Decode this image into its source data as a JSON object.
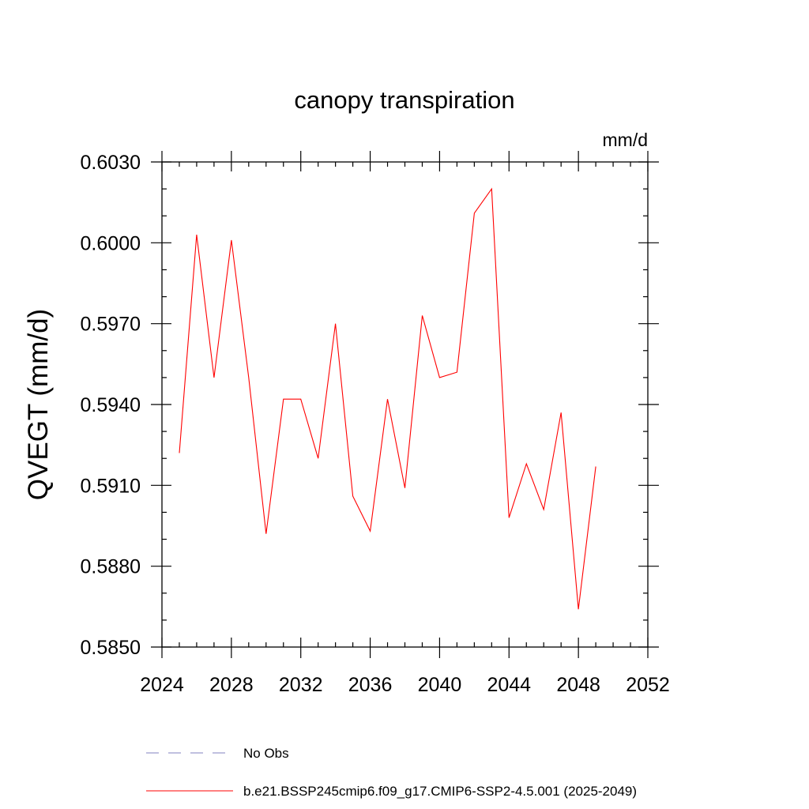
{
  "chart_data": {
    "type": "line",
    "title": "canopy transpiration",
    "units": "mm/d",
    "ylabel": "QVEGT  (mm/d)",
    "xlabel": "",
    "xlim": [
      2024,
      2052
    ],
    "ylim": [
      0.585,
      0.603
    ],
    "xticks": [
      2024,
      2028,
      2032,
      2036,
      2040,
      2044,
      2048,
      2052
    ],
    "xtick_labels": [
      "2024",
      "2028",
      "2032",
      "2036",
      "2040",
      "2044",
      "2048",
      "2052"
    ],
    "yticks": [
      0.585,
      0.588,
      0.591,
      0.594,
      0.597,
      0.6,
      0.603
    ],
    "ytick_labels": [
      "0.5850",
      "0.5880",
      "0.5910",
      "0.5940",
      "0.5970",
      "0.6000",
      "0.6030"
    ],
    "grid": false,
    "legend_position": "bottom",
    "legend": [
      {
        "label": "No Obs",
        "color": "#8080c0",
        "style": "dashed"
      },
      {
        "label": "b.e21.BSSP245cmip6.f09_g17.CMIP6-SSP2-4.5.001 (2025-2049)",
        "color": "#ff0000",
        "style": "solid"
      }
    ],
    "series": [
      {
        "color": "#ff0000",
        "x": [
          2025,
          2026,
          2027,
          2028,
          2029,
          2030,
          2031,
          2032,
          2033,
          2034,
          2035,
          2036,
          2037,
          2038,
          2039,
          2040,
          2041,
          2042,
          2043,
          2044,
          2045,
          2046,
          2047,
          2048,
          2049
        ],
        "values": [
          0.5922,
          0.6003,
          0.595,
          0.6001,
          0.595,
          0.5892,
          0.5942,
          0.5942,
          0.592,
          0.597,
          0.5906,
          0.5893,
          0.5942,
          0.5909,
          0.5973,
          0.595,
          0.5952,
          0.6011,
          0.602,
          0.5898,
          0.5918,
          0.5901,
          0.5937,
          0.5864,
          0.5917
        ]
      }
    ]
  }
}
